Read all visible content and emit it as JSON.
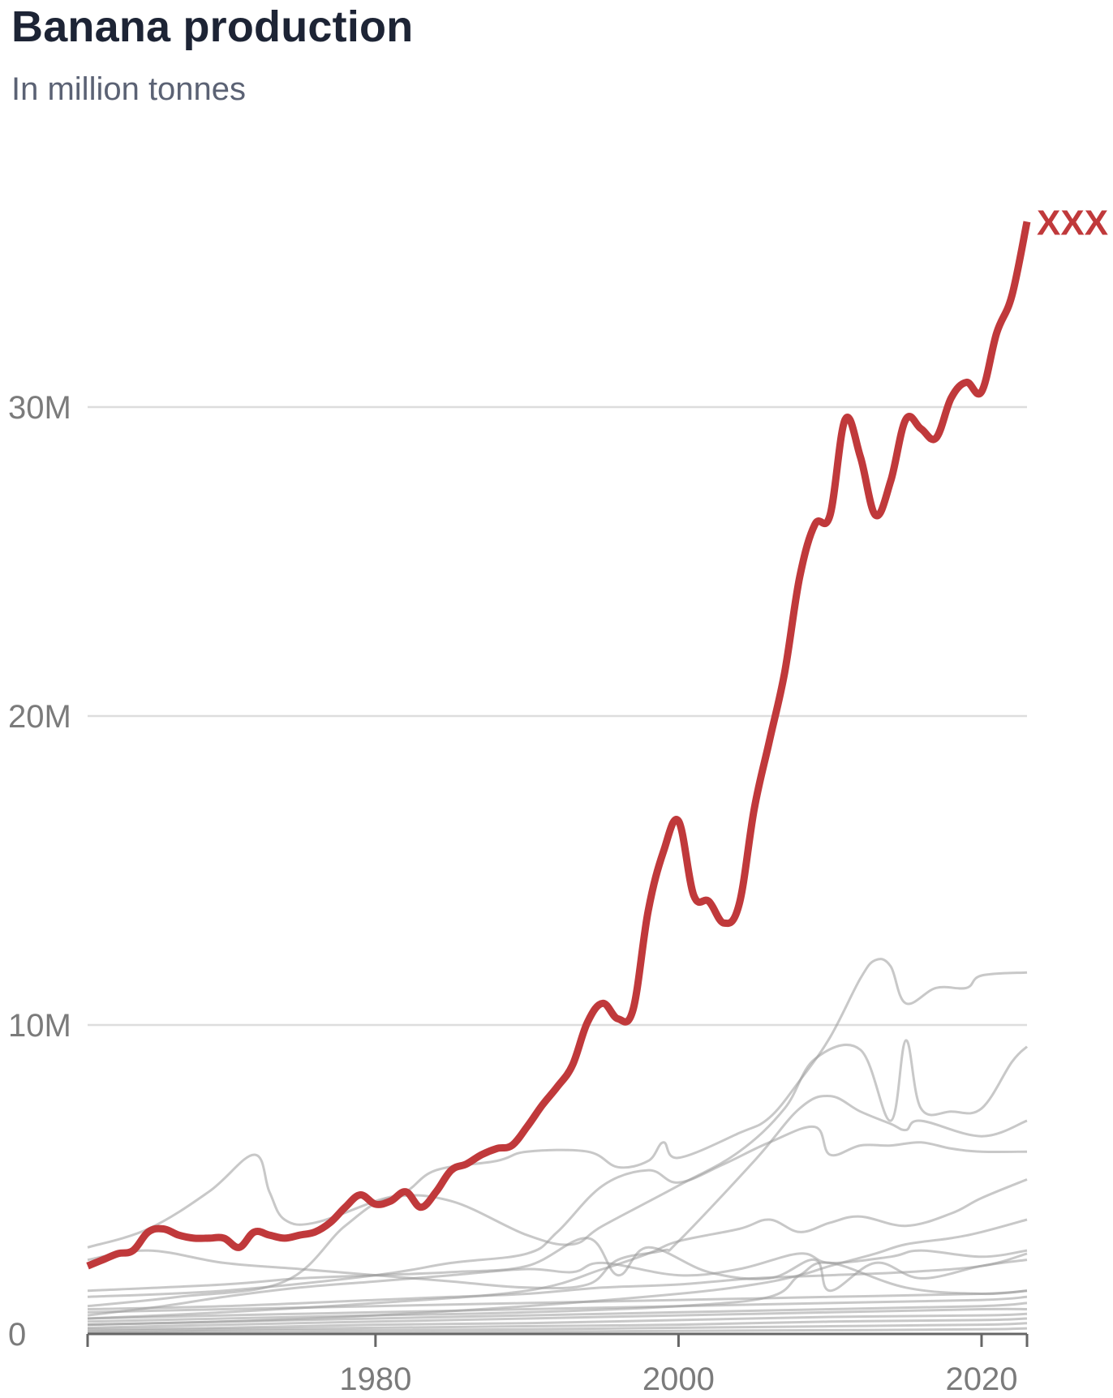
{
  "title": "Banana production",
  "subtitle": "In million tonnes",
  "chart_data": {
    "type": "line",
    "title": "Banana production",
    "subtitle": "In million tonnes",
    "xlabel": "",
    "ylabel": "",
    "xlim": [
      1961,
      2023
    ],
    "ylim": [
      0,
      38000000
    ],
    "grid": true,
    "y_ticks": [
      {
        "value": 0,
        "label": "0"
      },
      {
        "value": 10000000,
        "label": "10M"
      },
      {
        "value": 20000000,
        "label": "20M"
      },
      {
        "value": 30000000,
        "label": "30M"
      }
    ],
    "x_ticks": [
      {
        "value": 1980,
        "label": "1980"
      },
      {
        "value": 2000,
        "label": "2000"
      },
      {
        "value": 2020,
        "label": "2020"
      }
    ],
    "colors": {
      "highlight": "#c0393b",
      "context": "#9a9a9a",
      "grid": "#dddddd",
      "axis": "#666666"
    },
    "highlight": {
      "label": "XXX",
      "x": [
        1961,
        1962,
        1963,
        1964,
        1965,
        1966,
        1967,
        1968,
        1969,
        1970,
        1971,
        1972,
        1973,
        1974,
        1975,
        1976,
        1977,
        1978,
        1979,
        1980,
        1981,
        1982,
        1983,
        1984,
        1985,
        1986,
        1987,
        1988,
        1989,
        1990,
        1991,
        1992,
        1993,
        1994,
        1995,
        1996,
        1997,
        1998,
        1999,
        2000,
        2001,
        2002,
        2003,
        2004,
        2005,
        2006,
        2007,
        2008,
        2009,
        2010,
        2011,
        2012,
        2013,
        2014,
        2015,
        2016,
        2017,
        2018,
        2019,
        2020,
        2021,
        2022,
        2023
      ],
      "y": [
        2.2,
        2.4,
        2.6,
        2.7,
        3.3,
        3.4,
        3.2,
        3.1,
        3.1,
        3.1,
        2.8,
        3.3,
        3.2,
        3.1,
        3.2,
        3.3,
        3.6,
        4.1,
        4.5,
        4.2,
        4.3,
        4.6,
        4.1,
        4.6,
        5.3,
        5.5,
        5.8,
        6.0,
        6.1,
        6.7,
        7.4,
        8.0,
        8.7,
        10.1,
        10.7,
        10.2,
        10.5,
        13.7,
        15.6,
        16.6,
        14.2,
        14.0,
        13.3,
        13.9,
        17.0,
        19.2,
        21.4,
        24.5,
        26.2,
        26.5,
        29.6,
        28.4,
        26.5,
        27.6,
        29.6,
        29.3,
        29.0,
        30.3,
        30.8,
        30.5,
        32.4,
        33.6,
        36.0
      ]
    },
    "context_series": [
      {
        "x": [
          1961,
          1965,
          1969,
          1972,
          1973,
          1974,
          1976,
          1980,
          1982,
          1984,
          1988,
          1990,
          1994,
          1996,
          1998,
          1999,
          2000,
          2004,
          2006,
          2008,
          2010,
          2012,
          2013,
          2014,
          2015,
          2017,
          2019,
          2020,
          2023
        ],
        "y": [
          2.8,
          3.4,
          4.6,
          5.8,
          4.6,
          3.7,
          3.6,
          4.3,
          4.6,
          5.3,
          5.6,
          5.9,
          5.9,
          5.4,
          5.6,
          6.2,
          5.7,
          6.5,
          7.0,
          8.2,
          9.6,
          11.5,
          12.1,
          11.9,
          10.7,
          11.2,
          11.2,
          11.6,
          11.7
        ]
      },
      {
        "x": [
          1961,
          1965,
          1970,
          1975,
          1980,
          1985,
          1990,
          1994,
          1996,
          1999,
          2000,
          2005,
          2008,
          2010,
          2012,
          2014,
          2015,
          2016,
          2020,
          2023
        ],
        "y": [
          2.4,
          2.7,
          2.3,
          2.1,
          1.9,
          1.7,
          1.5,
          1.6,
          2.4,
          2.7,
          3.0,
          5.6,
          7.3,
          7.7,
          7.2,
          6.8,
          6.6,
          6.9,
          6.4,
          6.9
        ]
      },
      {
        "x": [
          1961,
          1967,
          1974,
          1978,
          1981,
          1985,
          1990,
          1993,
          1995,
          2000,
          2004,
          2007,
          2009,
          2012,
          2014,
          2015,
          2016,
          2018,
          2020,
          2022,
          2023
        ],
        "y": [
          0.9,
          1.2,
          1.7,
          3.5,
          4.4,
          4.3,
          3.2,
          2.9,
          3.5,
          4.8,
          5.9,
          7.3,
          8.9,
          9.2,
          6.9,
          9.5,
          7.3,
          7.2,
          7.3,
          8.8,
          9.3
        ]
      },
      {
        "x": [
          1961,
          1970,
          1980,
          1985,
          1990,
          1992,
          1995,
          1998,
          2000,
          2003,
          2006,
          2009,
          2010,
          2012,
          2014,
          2016,
          2018,
          2020,
          2023
        ],
        "y": [
          1.2,
          1.4,
          1.9,
          2.3,
          2.6,
          3.3,
          4.8,
          5.3,
          4.9,
          5.5,
          6.2,
          6.7,
          5.8,
          6.1,
          6.1,
          6.2,
          6.0,
          5.9,
          5.9
        ]
      },
      {
        "x": [
          1961,
          1970,
          1980,
          1990,
          1995,
          1998,
          2000,
          2004,
          2006,
          2008,
          2010,
          2012,
          2015,
          2018,
          2020,
          2023
        ],
        "y": [
          0.5,
          0.7,
          1.0,
          1.4,
          2.1,
          2.6,
          3.0,
          3.4,
          3.7,
          3.3,
          3.6,
          3.8,
          3.5,
          3.9,
          4.4,
          5.0
        ]
      },
      {
        "x": [
          1961,
          1970,
          1980,
          1990,
          2000,
          2005,
          2008,
          2010,
          2013,
          2015,
          2018,
          2020,
          2023
        ],
        "y": [
          0.3,
          0.4,
          0.6,
          0.9,
          1.3,
          1.6,
          1.9,
          2.2,
          2.6,
          2.9,
          3.1,
          3.3,
          3.7
        ]
      },
      {
        "x": [
          1961,
          1966,
          1970,
          1975,
          1980,
          1985,
          1990,
          1993,
          1995,
          2000,
          2004,
          2008,
          2010,
          2014,
          2016,
          2020,
          2023
        ],
        "y": [
          0.6,
          0.9,
          1.2,
          1.5,
          1.7,
          1.9,
          2.1,
          2.0,
          2.3,
          1.9,
          2.1,
          2.6,
          2.3,
          2.5,
          2.7,
          2.5,
          2.7
        ]
      },
      {
        "x": [
          1961,
          1970,
          1975,
          1980,
          1985,
          1990,
          1994,
          1996,
          1998,
          2002,
          2006,
          2009,
          2010,
          2013,
          2016,
          2020,
          2023
        ],
        "y": [
          1.4,
          1.6,
          1.8,
          1.9,
          2.0,
          2.2,
          3.1,
          1.9,
          2.8,
          2.0,
          1.8,
          2.4,
          1.4,
          2.3,
          1.8,
          2.2,
          2.4
        ]
      },
      {
        "x": [
          1961,
          1970,
          1980,
          1985,
          1990,
          1995,
          2000,
          2005,
          2010,
          2015,
          2020,
          2023
        ],
        "y": [
          0.8,
          0.9,
          1.1,
          1.2,
          1.3,
          1.5,
          1.6,
          1.8,
          1.9,
          2.0,
          2.2,
          2.6
        ]
      },
      {
        "x": [
          1961,
          1970,
          1980,
          1990,
          2000,
          2006,
          2008,
          2010,
          2015,
          2020,
          2023
        ],
        "y": [
          0.4,
          0.5,
          0.6,
          0.7,
          0.9,
          1.2,
          1.9,
          2.3,
          1.5,
          1.3,
          1.4
        ]
      },
      {
        "x": [
          1961,
          1970,
          1980,
          1990,
          2000,
          2010,
          2020,
          2023
        ],
        "y": [
          0.7,
          0.8,
          0.9,
          1.0,
          1.1,
          1.2,
          1.3,
          1.4
        ]
      },
      {
        "x": [
          1961,
          1970,
          1980,
          1990,
          2000,
          2010,
          2020,
          2023
        ],
        "y": [
          0.5,
          0.6,
          0.7,
          0.8,
          0.9,
          1.0,
          1.1,
          1.2
        ]
      },
      {
        "x": [
          1961,
          1970,
          1980,
          1990,
          2000,
          2010,
          2020,
          2023
        ],
        "y": [
          0.3,
          0.4,
          0.5,
          0.6,
          0.7,
          0.8,
          0.9,
          1.0
        ]
      },
      {
        "x": [
          1961,
          1970,
          1980,
          1990,
          2000,
          2010,
          2020,
          2023
        ],
        "y": [
          0.2,
          0.3,
          0.4,
          0.5,
          0.6,
          0.7,
          0.8,
          0.8
        ]
      },
      {
        "x": [
          1961,
          1970,
          1980,
          1990,
          2000,
          2010,
          2020,
          2023
        ],
        "y": [
          0.15,
          0.2,
          0.3,
          0.35,
          0.45,
          0.55,
          0.6,
          0.65
        ]
      },
      {
        "x": [
          1961,
          1970,
          1980,
          1990,
          2000,
          2010,
          2020,
          2023
        ],
        "y": [
          0.1,
          0.15,
          0.2,
          0.25,
          0.3,
          0.4,
          0.45,
          0.5
        ]
      },
      {
        "x": [
          1961,
          1970,
          1980,
          1990,
          2000,
          2010,
          2020,
          2023
        ],
        "y": [
          0.05,
          0.1,
          0.12,
          0.15,
          0.2,
          0.25,
          0.3,
          0.35
        ]
      },
      {
        "x": [
          1961,
          1970,
          1980,
          1990,
          2000,
          2010,
          2020,
          2023
        ],
        "y": [
          0.02,
          0.04,
          0.05,
          0.07,
          0.1,
          0.12,
          0.15,
          0.18
        ]
      }
    ]
  }
}
